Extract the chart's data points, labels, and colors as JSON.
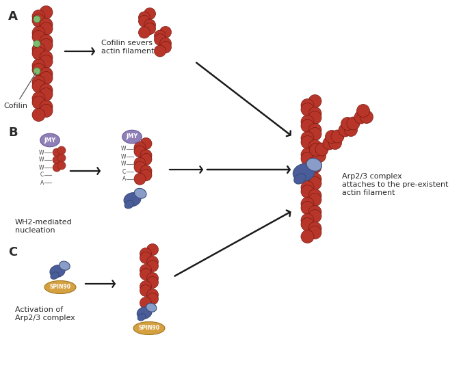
{
  "bg_color": "#ffffff",
  "actin_color": "#b8352a",
  "actin_edge": "#7a1a10",
  "cofilin_dot_color": "#7dbb6e",
  "cofilin_dot_edge": "#3a8a3a",
  "arp23_dark": "#4a5c9a",
  "arp23_light": "#8a9cc8",
  "arp23_edge": "#3a4f7a",
  "jmy_color": "#9080b8",
  "jmy_edge": "#6a5a99",
  "spin90_color": "#d4a040",
  "spin90_edge": "#a07820",
  "arrow_color": "#1a1a1a",
  "text_color": "#2a2a2a",
  "label_A": "A",
  "label_B": "B",
  "label_C": "C",
  "text_cofilin": "Cofilin",
  "text_cofilin_severs": "Cofilin severs\nactin filament",
  "text_wh2": "WH2-mediated\nnucleation",
  "text_activation": "Activation of\nArp2/3 complex",
  "text_arp23": "Arp2/3 complex\nattaches to the pre-existent\nactin filament",
  "text_jmy": "JMY",
  "text_spin90": "SPIN90",
  "fig_width": 6.93,
  "fig_height": 5.44
}
